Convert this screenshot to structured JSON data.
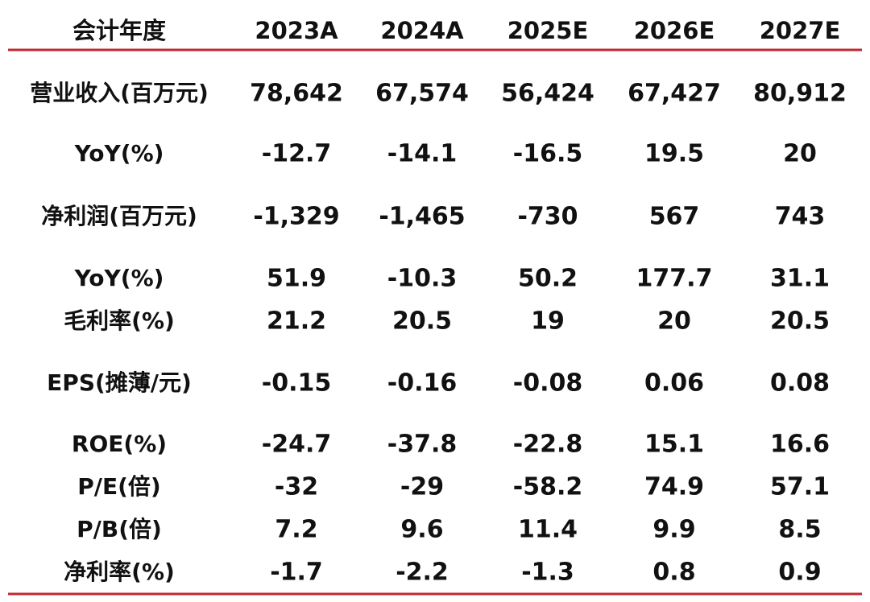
{
  "table": {
    "header": [
      "会计年度",
      "2023A",
      "2024A",
      "2025E",
      "2026E",
      "2027E"
    ],
    "rows": [
      [
        "营业收入(百万元)",
        "78,642",
        "67,574",
        "56,424",
        "67,427",
        "80,912"
      ],
      [
        "YoY(%)",
        "-12.7",
        "-14.1",
        "-16.5",
        "19.5",
        "20"
      ],
      [
        "净利润(百万元)",
        "-1,329",
        "-1,465",
        "-730",
        "567",
        "743"
      ],
      [
        "YoY(%)",
        "51.9",
        "-10.3",
        "50.2",
        "177.7",
        "31.1"
      ],
      [
        "毛利率(%)",
        "21.2",
        "20.5",
        "19",
        "20",
        "20.5"
      ],
      [
        "EPS(摊薄/元)",
        "-0.15",
        "-0.16",
        "-0.08",
        "0.06",
        "0.08"
      ],
      [
        "ROE(%)",
        "-24.7",
        "-37.8",
        "-22.8",
        "15.1",
        "16.6"
      ],
      [
        "P/E(倍)",
        "-32",
        "-29",
        "-58.2",
        "74.9",
        "57.1"
      ],
      [
        "P/B(倍)",
        "7.2",
        "9.6",
        "11.4",
        "9.9",
        "8.5"
      ],
      [
        "净利率(%)",
        "-1.7",
        "-2.2",
        "-1.3",
        "0.8",
        "0.9"
      ]
    ]
  }
}
